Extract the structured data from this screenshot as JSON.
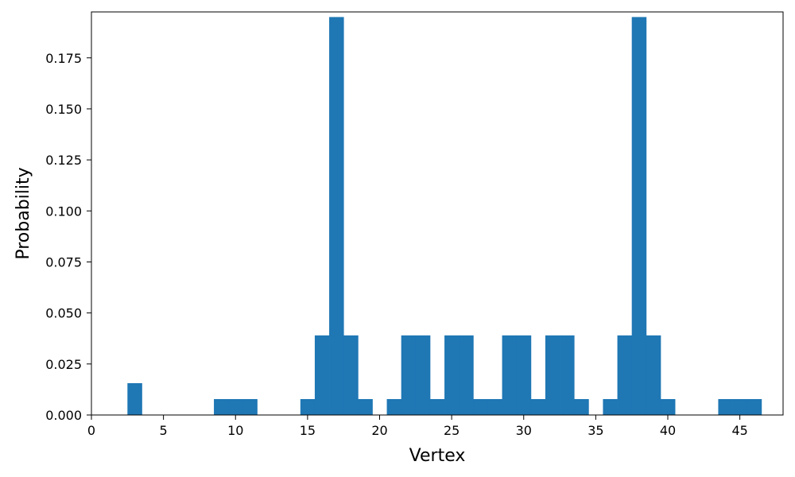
{
  "chart_data": {
    "type": "bar",
    "xlabel": "Vertex",
    "ylabel": "Probability",
    "xlim": [
      0,
      48
    ],
    "ylim": [
      0,
      0.1975
    ],
    "grid": false,
    "bar_color": "#1f77b4",
    "bar_width": 1,
    "xticks": [
      0,
      5,
      10,
      15,
      20,
      25,
      30,
      35,
      40,
      45
    ],
    "xtick_labels": [
      "0",
      "5",
      "10",
      "15",
      "20",
      "25",
      "30",
      "35",
      "40",
      "45"
    ],
    "yticks": [
      0,
      0.025,
      0.05,
      0.075,
      0.1,
      0.125,
      0.15,
      0.175
    ],
    "ytick_labels": [
      "0.000",
      "0.025",
      "0.050",
      "0.075",
      "0.100",
      "0.125",
      "0.150",
      "0.175"
    ],
    "x": [
      3,
      9,
      10,
      11,
      15,
      16,
      17,
      18,
      19,
      21,
      22,
      23,
      24,
      25,
      26,
      27,
      28,
      29,
      30,
      31,
      32,
      33,
      34,
      36,
      37,
      38,
      39,
      40,
      44,
      45,
      46
    ],
    "values": [
      0.0156,
      0.0078,
      0.0078,
      0.0078,
      0.0078,
      0.039,
      0.195,
      0.039,
      0.0078,
      0.0078,
      0.039,
      0.039,
      0.0078,
      0.039,
      0.039,
      0.0078,
      0.0078,
      0.039,
      0.039,
      0.0078,
      0.039,
      0.039,
      0.0078,
      0.0078,
      0.039,
      0.195,
      0.039,
      0.0078,
      0.0078,
      0.0078,
      0.0078
    ]
  }
}
